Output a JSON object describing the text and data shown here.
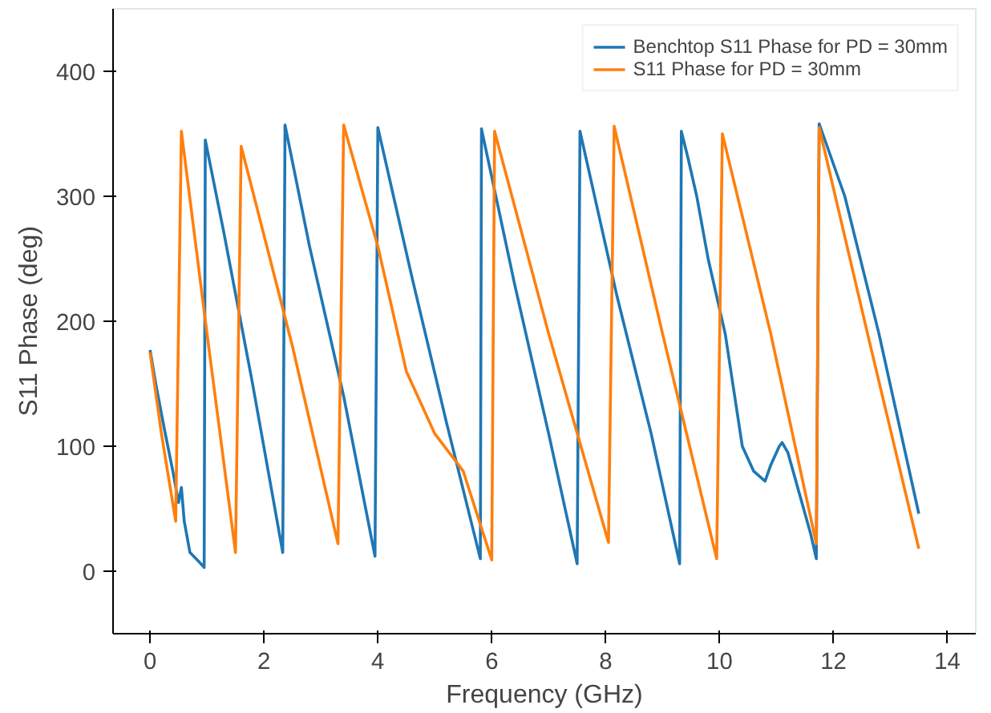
{
  "chart_data": {
    "type": "line",
    "xlabel": "Frequency (GHz)",
    "ylabel": "S11 Phase (deg)",
    "xlim": [
      -0.65,
      14.5
    ],
    "ylim": [
      -50,
      450
    ],
    "xticks": [
      0,
      2,
      4,
      6,
      8,
      10,
      12,
      14
    ],
    "yticks": [
      0,
      100,
      200,
      300,
      400
    ],
    "grid": false,
    "legend": "top right",
    "line_style": "solid",
    "marker": "none",
    "series": [
      {
        "name": "Benchtop S11 Phase for PD = 30mm",
        "color": "#1f77b4",
        "x": [
          0,
          0.1,
          0.25,
          0.4,
          0.5,
          0.55,
          0.6,
          0.7,
          0.85,
          0.95,
          0.97,
          1.3,
          1.8,
          2.33,
          2.37,
          2.8,
          3.4,
          3.95,
          4.0,
          4.6,
          5.2,
          5.8,
          5.82,
          6.4,
          7.0,
          7.5,
          7.55,
          8.2,
          8.8,
          9.3,
          9.33,
          9.45,
          9.6,
          9.8,
          10.1,
          10.4,
          10.6,
          10.8,
          10.9,
          11.05,
          11.1,
          11.2,
          11.6,
          11.7,
          11.75,
          12.2,
          12.8,
          13.5
        ],
        "values": [
          177,
          150,
          114,
          80,
          55,
          67,
          40,
          15,
          8,
          3,
          345,
          270,
          150,
          15,
          357,
          260,
          140,
          12,
          355,
          235,
          120,
          10,
          354,
          230,
          110,
          6,
          352,
          220,
          110,
          6,
          352,
          330,
          300,
          250,
          190,
          100,
          80,
          72,
          85,
          100,
          103,
          95,
          30,
          10,
          358,
          300,
          190,
          46
        ]
      },
      {
        "name": "S11 Phase for PD = 30mm",
        "color": "#ff7f0e",
        "x": [
          0,
          0.2,
          0.45,
          0.55,
          1.0,
          1.5,
          1.6,
          2.5,
          3.3,
          3.4,
          4.0,
          4.5,
          5.0,
          5.5,
          6.0,
          6.05,
          7.0,
          8.05,
          8.15,
          9.0,
          9.95,
          10.05,
          10.9,
          11.7,
          11.75,
          12.6,
          13.5
        ],
        "values": [
          175,
          110,
          40,
          352,
          190,
          15,
          340,
          180,
          22,
          357,
          260,
          160,
          110,
          80,
          9,
          352,
          190,
          23,
          356,
          190,
          10,
          350,
          190,
          22,
          355,
          190,
          18
        ]
      }
    ]
  }
}
